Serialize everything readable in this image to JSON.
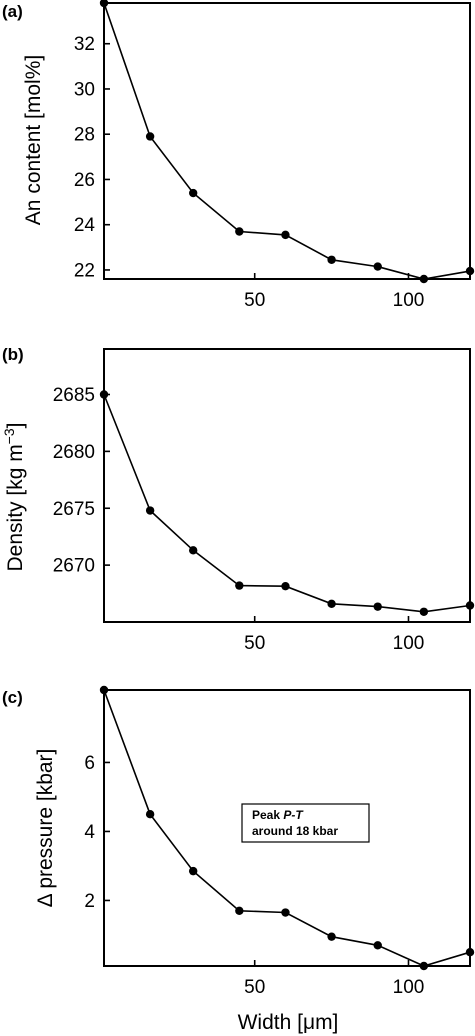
{
  "chart_data": [
    {
      "type": "line",
      "panel_label": "(a)",
      "ylabel_main": "An content [mol%]",
      "x": [
        1,
        16,
        30,
        45,
        60,
        75,
        90,
        105,
        120
      ],
      "values": [
        33.8,
        27.9,
        25.4,
        23.7,
        23.55,
        22.45,
        22.15,
        21.6,
        21.95
      ],
      "xlim": [
        1,
        120
      ],
      "ylim": [
        21.6,
        33.8
      ],
      "xticks": [
        50,
        100
      ],
      "yticks": [
        22,
        24,
        26,
        28,
        30,
        32
      ],
      "xtick_labels": [
        "50",
        "100"
      ],
      "ytick_labels": [
        "22",
        "24",
        "26",
        "28",
        "30",
        "32"
      ],
      "grid": false
    },
    {
      "type": "line",
      "panel_label": "(b)",
      "ylabel_main": "Density [kg m",
      "ylabel_sup": "−3",
      "ylabel_end": "]",
      "x": [
        1,
        16,
        30,
        45,
        60,
        75,
        90,
        105,
        120
      ],
      "values": [
        2685,
        2674.8,
        2671.3,
        2668.2,
        2668.15,
        2666.6,
        2666.35,
        2665.9,
        2666.45
      ],
      "xlim": [
        1,
        120
      ],
      "ylim": [
        2665,
        2689
      ],
      "xticks": [
        50,
        100
      ],
      "yticks": [
        2670,
        2675,
        2680,
        2685
      ],
      "xtick_labels": [
        "50",
        "100"
      ],
      "ytick_labels": [
        "2670",
        "2675",
        "2680",
        "2685"
      ],
      "grid": false
    },
    {
      "type": "line",
      "panel_label": "(c)",
      "ylabel_main": "Δ pressure [kbar]",
      "xlabel_main": "Width [",
      "xlabel_unit": "μ",
      "xlabel_end": "m]",
      "x": [
        1,
        16,
        30,
        45,
        60,
        75,
        90,
        105,
        120
      ],
      "values": [
        8.1,
        4.5,
        2.85,
        1.7,
        1.65,
        0.95,
        0.7,
        0.1,
        0.5
      ],
      "xlim": [
        1,
        120
      ],
      "ylim": [
        0.1,
        8.1
      ],
      "xticks": [
        50,
        100
      ],
      "yticks": [
        2,
        4,
        6
      ],
      "xtick_labels": [
        "50",
        "100"
      ],
      "ytick_labels": [
        "2",
        "4",
        "6"
      ],
      "grid": false,
      "annotation": {
        "line1_italic": "P-T",
        "line1_prefix": "Peak ",
        "line2": "around 18 kbar"
      }
    }
  ]
}
